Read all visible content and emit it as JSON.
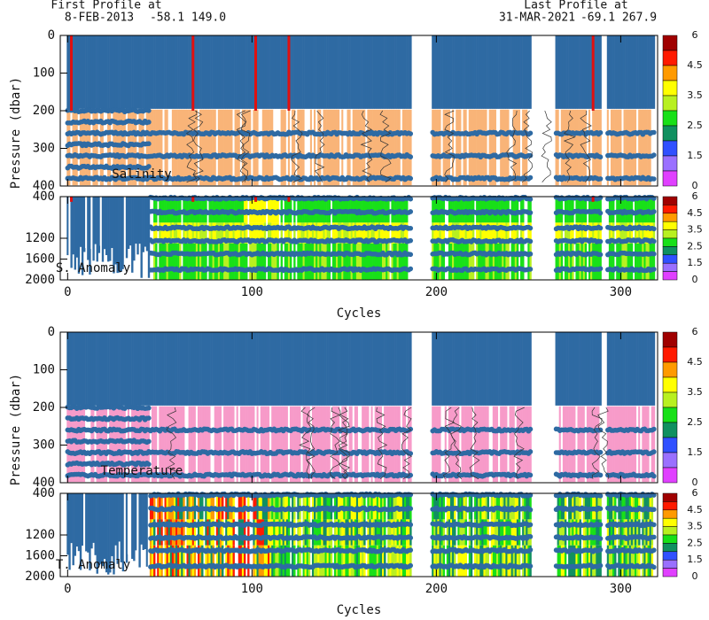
{
  "header": {
    "first_label": "First Profile at",
    "first_date": "8-FEB-2013",
    "first_position": "-58.1 149.0",
    "last_label": "Last Profile at",
    "last_date": "31-MAR-2021",
    "last_position": "-69.1 267.9"
  },
  "panels": [
    {
      "label": "Salinity",
      "y_axis_label": "Pressure (dbar)",
      "ylim": [
        0,
        400
      ],
      "yticks": [
        0,
        100,
        200,
        300,
        400
      ],
      "fill": "#f9b478"
    },
    {
      "label": "S. Anomaly",
      "ylim": [
        400,
        2000
      ],
      "yticks": [
        400,
        1200,
        1600,
        2000
      ],
      "x_axis_label": "Cycles"
    },
    {
      "label": "Temperature",
      "y_axis_label": "Pressure (dbar)",
      "ylim": [
        0,
        400
      ],
      "yticks": [
        0,
        100,
        200,
        300,
        400
      ],
      "fill": "#f79bc9"
    },
    {
      "label": "T. Anomaly",
      "ylim": [
        400,
        2000
      ],
      "yticks": [
        400,
        1200,
        1600,
        2000
      ],
      "x_axis_label": "Cycles"
    }
  ],
  "x_axis": {
    "xlim": [
      -4,
      320
    ],
    "xticks": [
      0,
      100,
      200,
      300
    ]
  },
  "colorbar": {
    "labels": [
      "6",
      "4.5",
      "3.5",
      "2.5",
      "1.5",
      "0"
    ],
    "colors": [
      "#a00000",
      "#ff1a00",
      "#ff9a00",
      "#ffff00",
      "#b8f020",
      "#18e018",
      "#109060",
      "#3050ff",
      "#9a70ff",
      "#e040ff"
    ]
  },
  "marker_color": "#2e6aa3"
}
